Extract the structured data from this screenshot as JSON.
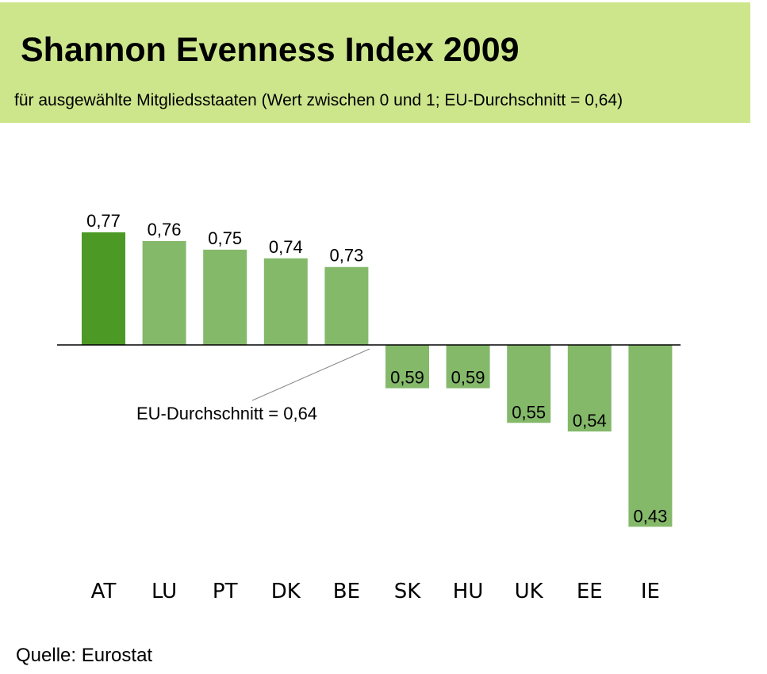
{
  "header": {
    "title": "Shannon Evenness Index 2009",
    "subtitle": "für ausgewählte Mitgliedsstaaten (Wert zwischen 0 und 1; EU-Durchschnitt =  0,64)"
  },
  "source": "Quelle: Eurostat",
  "colors": {
    "header_bg": "#cde68c",
    "highlight_bar": "#4c9a25",
    "bar": "#84b96a",
    "baseline": "#000000",
    "leader_line": "#888888"
  },
  "chart_data": {
    "type": "bar",
    "title": "Shannon Evenness Index 2009",
    "subtitle": "für ausgewählte Mitgliedsstaaten (Wert zwischen 0 und 1; EU-Durchschnitt =  0,64)",
    "xlabel": "",
    "ylabel": "",
    "baseline": 0.64,
    "baseline_label": "EU-Durchschnitt = 0,64",
    "categories": [
      "AT",
      "LU",
      "PT",
      "DK",
      "BE",
      "SK",
      "HU",
      "UK",
      "EE",
      "IE"
    ],
    "values": [
      0.77,
      0.76,
      0.75,
      0.74,
      0.73,
      0.59,
      0.59,
      0.55,
      0.54,
      0.43
    ],
    "value_labels": [
      "0,77",
      "0,76",
      "0,75",
      "0,74",
      "0,73",
      "0,59",
      "0,59",
      "0,55",
      "0,54",
      "0,43"
    ],
    "highlight": "AT",
    "grid": false,
    "legend": "none"
  }
}
